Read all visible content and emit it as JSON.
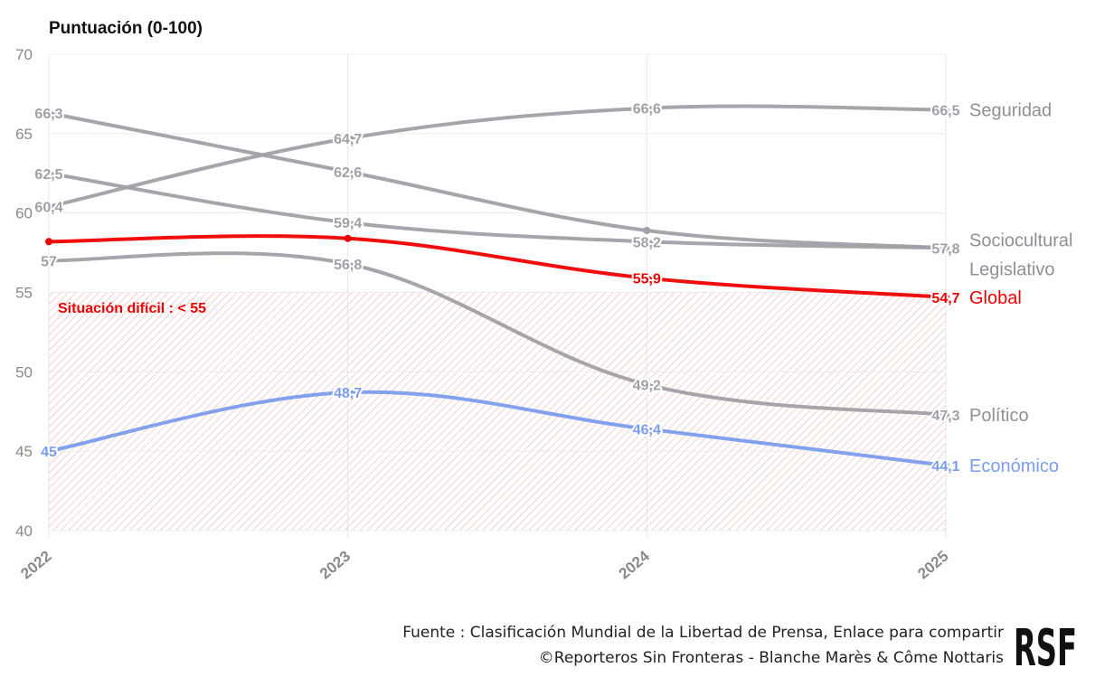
{
  "chart_data": {
    "type": "line",
    "ylabel": "Puntuación (0-100)",
    "ylim": [
      40,
      70
    ],
    "yticks": [
      40,
      45,
      50,
      55,
      60,
      65,
      70
    ],
    "x": [
      "2022",
      "2023",
      "2024",
      "2025"
    ],
    "threshold": {
      "value": 55,
      "label": "Situación difícil : < 55",
      "color": "#ee0000"
    },
    "series": [
      {
        "name": "Seguridad",
        "color": "#a0a0a6",
        "values": [
          60.4,
          64.7,
          66.6,
          66.5
        ],
        "labels": [
          "60,4",
          "64,7",
          "66,6",
          "66,5"
        ]
      },
      {
        "name": "Sociocultural",
        "color": "#a0a0a6",
        "values": [
          66.3,
          62.6,
          58.9,
          57.8
        ],
        "labels": [
          "66,3",
          "62,6",
          "",
          "57,8"
        ]
      },
      {
        "name": "Legislativo",
        "color": "#a0a0a6",
        "values": [
          62.5,
          59.4,
          58.2,
          57.8
        ],
        "labels": [
          "62,5",
          "59,4",
          "58,2",
          ""
        ]
      },
      {
        "name": "Político",
        "color": "#a0a0a6",
        "values": [
          57,
          56.8,
          49.2,
          47.3
        ],
        "labels": [
          "57",
          "56,8",
          "49,2",
          "47,3"
        ]
      },
      {
        "name": "Global",
        "color": "#ee0000",
        "values": [
          58.2,
          58.4,
          55.9,
          54.7
        ],
        "labels": [
          "",
          "",
          "55,9",
          "54,7"
        ]
      },
      {
        "name": "Económico",
        "color": "#7b9ded",
        "values": [
          45,
          48.7,
          46.4,
          44.1
        ],
        "labels": [
          "45",
          "48,7",
          "46,4",
          "44,1"
        ]
      }
    ]
  },
  "footer": {
    "line1": "Fuente : Clasificación Mundial de la Libertad de Prensa, Enlace para compartir",
    "line2": "©Reporteros Sin Fronteras - Blanche Marès & Côme Nottaris"
  },
  "logo": {
    "text": "RSF"
  }
}
